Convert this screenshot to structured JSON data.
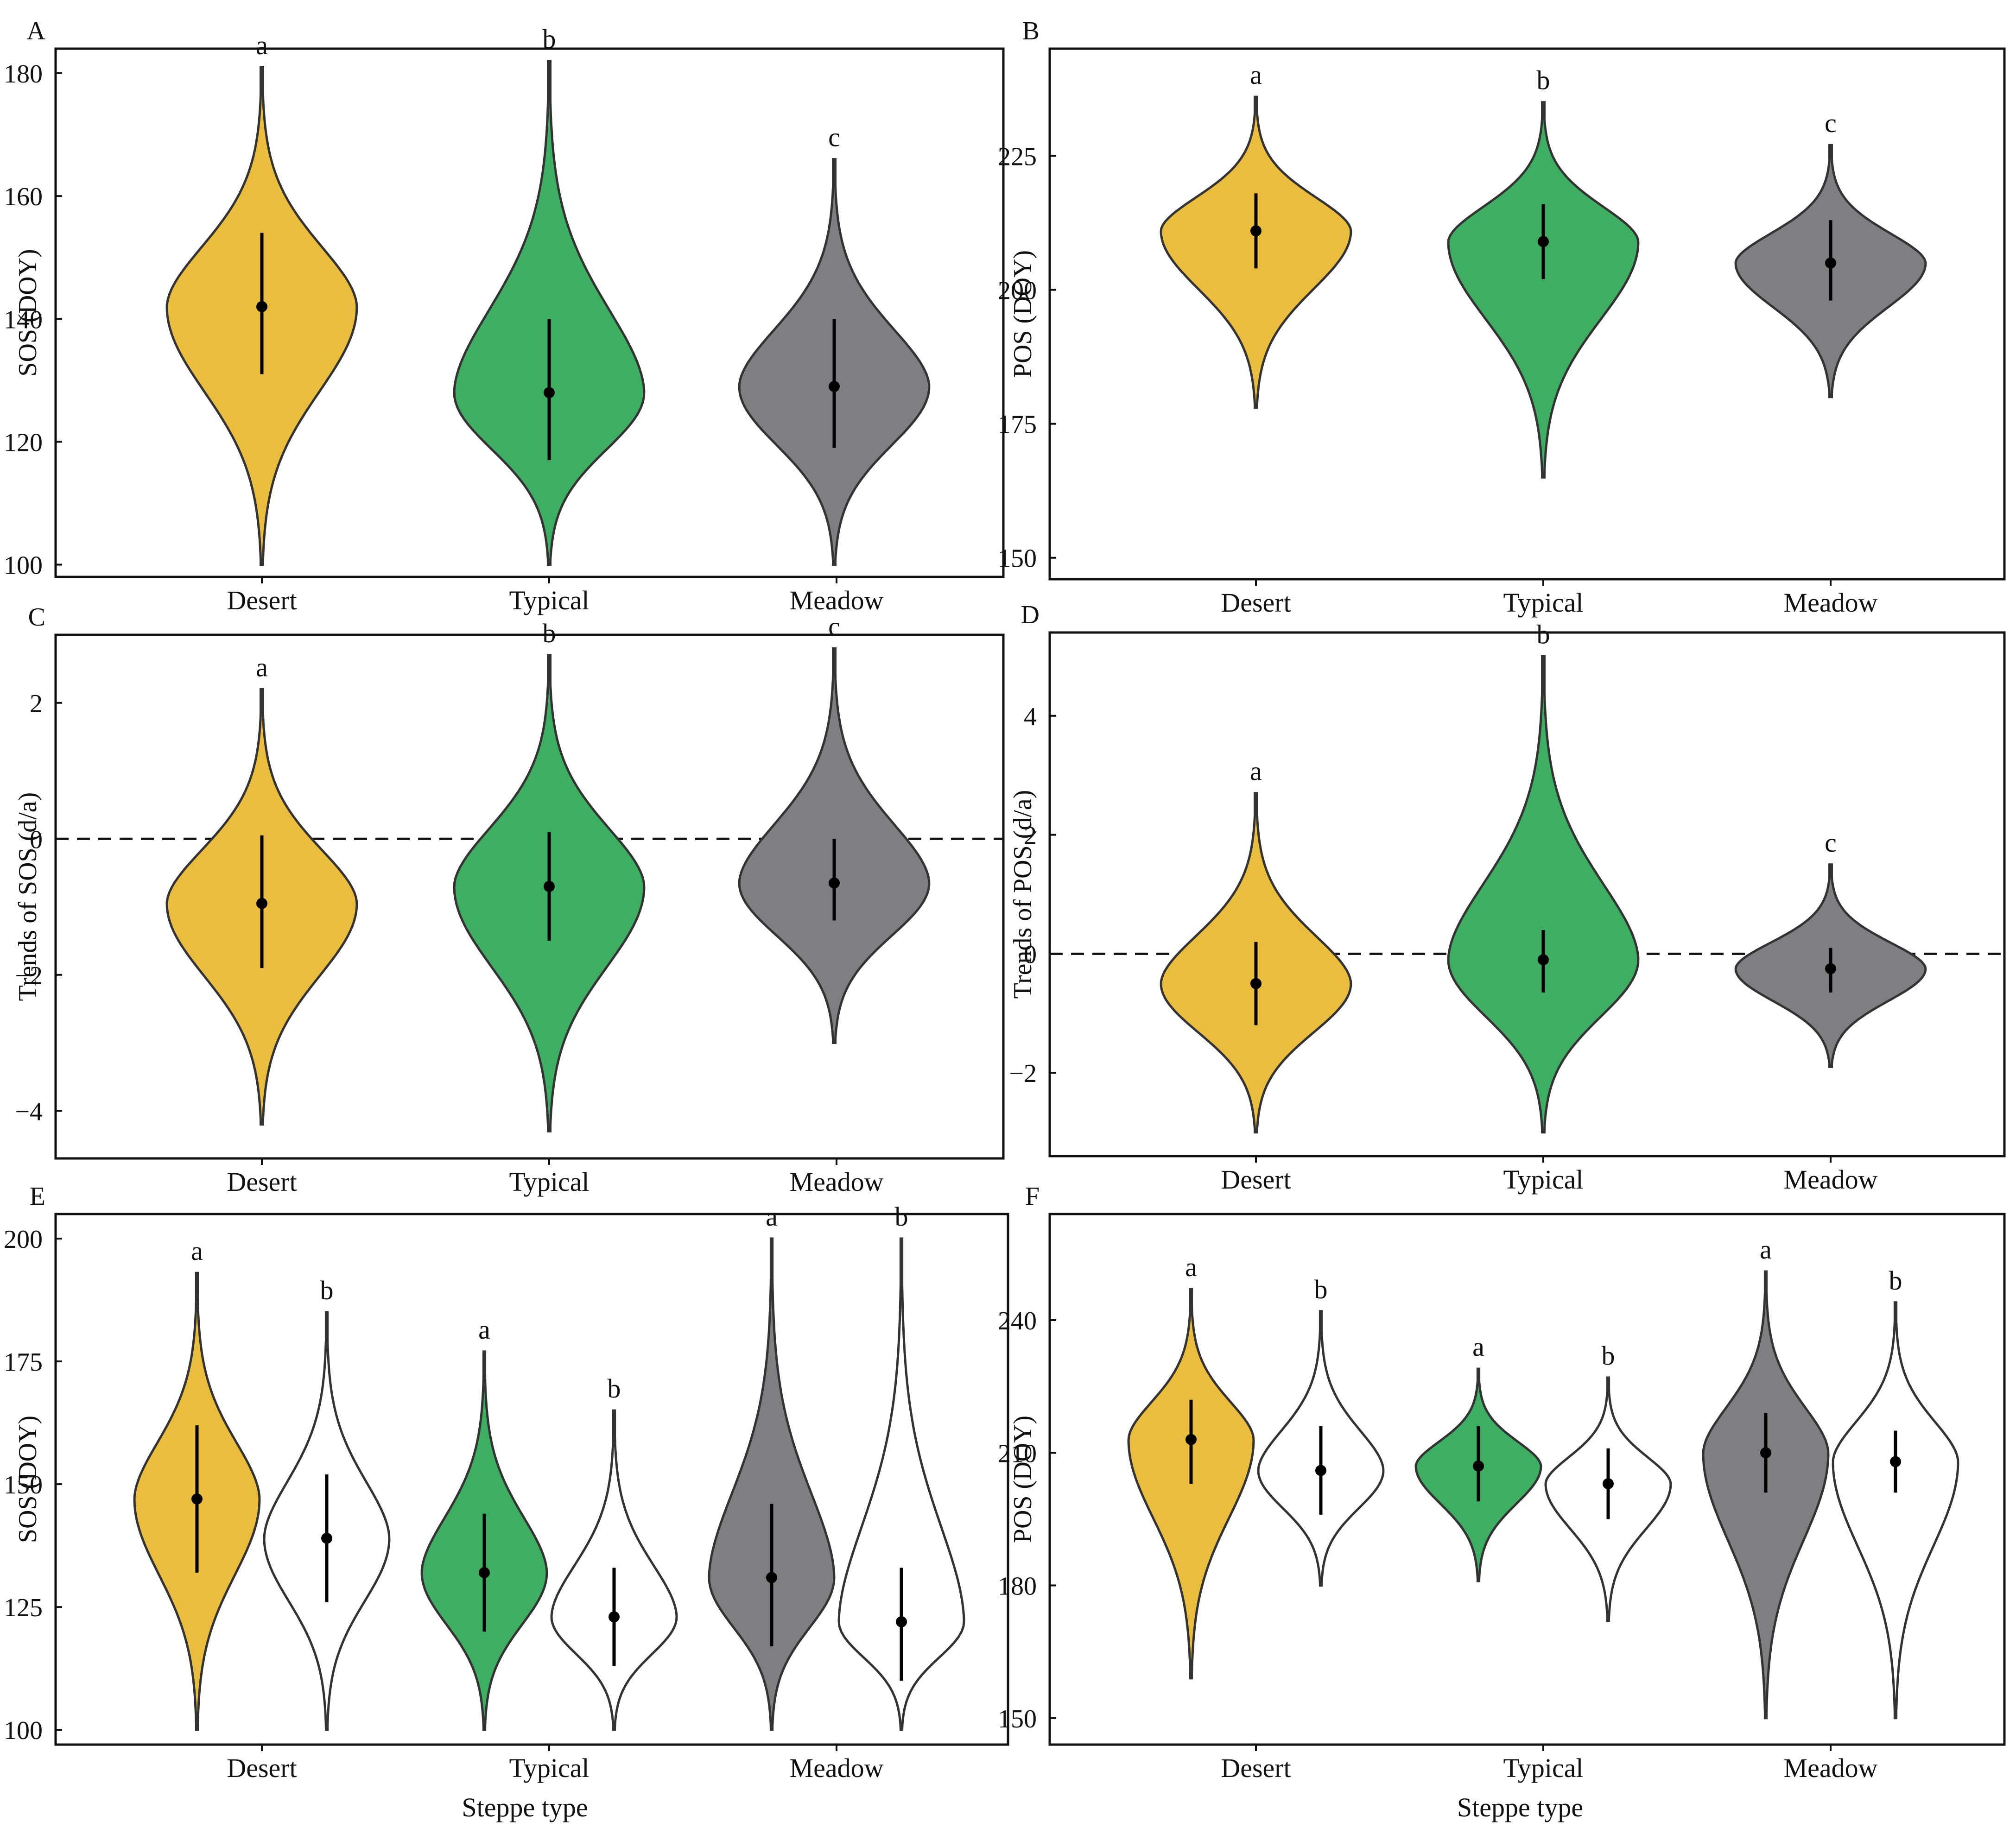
{
  "figure": {
    "x_axis_title": "Steppe type",
    "colors": {
      "Desert": "#EBBD3F",
      "Typical": "#3DAE62",
      "Meadow": "#7E7F82",
      "grazed": "#FFFFFF",
      "outline": "#333333"
    }
  },
  "chart_data": [
    {
      "panel": "A",
      "type": "violin",
      "ylabel": "SOS (DOY)",
      "xlabel": "",
      "categories": [
        "Desert",
        "Typical",
        "Meadow"
      ],
      "ylim": [
        98,
        184
      ],
      "yticks": [
        100,
        120,
        140,
        160,
        180
      ],
      "series": [
        {
          "category": "Desert",
          "fill": "Desert",
          "min": 100,
          "max": 181,
          "q1": 131,
          "q3": 154,
          "median": 142,
          "letter": "a"
        },
        {
          "category": "Typical",
          "fill": "Typical",
          "min": 100,
          "max": 182,
          "q1": 117,
          "q3": 140,
          "median": 128,
          "letter": "b"
        },
        {
          "category": "Meadow",
          "fill": "Meadow",
          "min": 100,
          "max": 166,
          "q1": 119,
          "q3": 140,
          "median": 129,
          "letter": "c"
        }
      ]
    },
    {
      "panel": "B",
      "type": "violin",
      "ylabel": "POS (DOY)",
      "xlabel": "",
      "categories": [
        "Desert",
        "Typical",
        "Meadow"
      ],
      "ylim": [
        146,
        245
      ],
      "yticks": [
        150,
        175,
        200,
        225
      ],
      "series": [
        {
          "category": "Desert",
          "fill": "Desert",
          "min": 178,
          "max": 236,
          "q1": 204,
          "q3": 218,
          "median": 211,
          "letter": "a"
        },
        {
          "category": "Typical",
          "fill": "Typical",
          "min": 165,
          "max": 235,
          "q1": 202,
          "q3": 216,
          "median": 209,
          "letter": "b"
        },
        {
          "category": "Meadow",
          "fill": "Meadow",
          "min": 180,
          "max": 227,
          "q1": 198,
          "q3": 213,
          "median": 205,
          "letter": "c"
        }
      ]
    },
    {
      "panel": "C",
      "type": "violin",
      "ylabel": "Trends of SOS (d/a)",
      "xlabel": "",
      "categories": [
        "Desert",
        "Typical",
        "Meadow"
      ],
      "ylim": [
        -4.7,
        3.0
      ],
      "yticks": [
        -4,
        -2,
        0,
        2
      ],
      "reference_line": 0,
      "series": [
        {
          "category": "Desert",
          "fill": "Desert",
          "min": -4.2,
          "max": 2.2,
          "q1": -1.9,
          "q3": 0.05,
          "median": -0.95,
          "letter": "a"
        },
        {
          "category": "Typical",
          "fill": "Typical",
          "min": -4.3,
          "max": 2.7,
          "q1": -1.5,
          "q3": 0.1,
          "median": -0.7,
          "letter": "b"
        },
        {
          "category": "Meadow",
          "fill": "Meadow",
          "min": -3.0,
          "max": 2.8,
          "q1": -1.2,
          "q3": 0.0,
          "median": -0.65,
          "letter": "c"
        }
      ]
    },
    {
      "panel": "D",
      "type": "violin",
      "ylabel": "Trends of POS (d/a)",
      "xlabel": "",
      "categories": [
        "Desert",
        "Typical",
        "Meadow"
      ],
      "ylim": [
        -3.4,
        5.4
      ],
      "yticks": [
        -2,
        0,
        2,
        4
      ],
      "reference_line": 0,
      "series": [
        {
          "category": "Desert",
          "fill": "Desert",
          "min": -3.0,
          "max": 2.7,
          "q1": -1.2,
          "q3": 0.2,
          "median": -0.5,
          "letter": "a"
        },
        {
          "category": "Typical",
          "fill": "Typical",
          "min": -3.0,
          "max": 5.0,
          "q1": -0.65,
          "q3": 0.4,
          "median": -0.1,
          "letter": "b"
        },
        {
          "category": "Meadow",
          "fill": "Meadow",
          "min": -1.9,
          "max": 1.5,
          "q1": -0.65,
          "q3": 0.1,
          "median": -0.25,
          "letter": "c"
        }
      ]
    },
    {
      "panel": "E",
      "type": "violin",
      "ylabel": "SOS (DOY)",
      "xlabel": "Steppe type",
      "categories": [
        "Desert",
        "Typical",
        "Meadow"
      ],
      "ylim": [
        97,
        205
      ],
      "yticks": [
        100,
        125,
        150,
        175,
        200
      ],
      "series": [
        {
          "category": "Desert",
          "group": 1,
          "fill": "Desert",
          "min": 100,
          "max": 193,
          "q1": 132,
          "q3": 162,
          "median": 147,
          "letter": "a"
        },
        {
          "category": "Desert",
          "group": 2,
          "fill": "grazed",
          "min": 100,
          "max": 185,
          "q1": 126,
          "q3": 152,
          "median": 139,
          "letter": "b"
        },
        {
          "category": "Typical",
          "group": 1,
          "fill": "Typical",
          "min": 100,
          "max": 177,
          "q1": 120,
          "q3": 144,
          "median": 132,
          "letter": "a"
        },
        {
          "category": "Typical",
          "group": 2,
          "fill": "grazed",
          "min": 100,
          "max": 165,
          "q1": 113,
          "q3": 133,
          "median": 123,
          "letter": "b"
        },
        {
          "category": "Meadow",
          "group": 1,
          "fill": "Meadow",
          "min": 100,
          "max": 200,
          "q1": 117,
          "q3": 146,
          "median": 131,
          "letter": "a"
        },
        {
          "category": "Meadow",
          "group": 2,
          "fill": "grazed",
          "min": 100,
          "max": 200,
          "q1": 110,
          "q3": 133,
          "median": 122,
          "letter": "b"
        }
      ]
    },
    {
      "panel": "F",
      "type": "violin",
      "ylabel": "POS (DOY)",
      "xlabel": "Steppe type",
      "categories": [
        "Desert",
        "Typical",
        "Meadow"
      ],
      "ylim": [
        144,
        264
      ],
      "yticks": [
        150,
        180,
        210,
        240
      ],
      "series": [
        {
          "category": "Desert",
          "group": 1,
          "fill": "Desert",
          "min": 159,
          "max": 247,
          "q1": 203,
          "q3": 222,
          "median": 213,
          "letter": "a"
        },
        {
          "category": "Desert",
          "group": 2,
          "fill": "grazed",
          "min": 180,
          "max": 242,
          "q1": 196,
          "q3": 216,
          "median": 206,
          "letter": "b"
        },
        {
          "category": "Typical",
          "group": 1,
          "fill": "Typical",
          "min": 181,
          "max": 229,
          "q1": 199,
          "q3": 216,
          "median": 207,
          "letter": "a"
        },
        {
          "category": "Typical",
          "group": 2,
          "fill": "grazed",
          "min": 172,
          "max": 227,
          "q1": 195,
          "q3": 211,
          "median": 203,
          "letter": "b"
        },
        {
          "category": "Meadow",
          "group": 1,
          "fill": "Meadow",
          "min": 150,
          "max": 251,
          "q1": 201,
          "q3": 219,
          "median": 210,
          "letter": "a"
        },
        {
          "category": "Meadow",
          "group": 2,
          "fill": "grazed",
          "min": 150,
          "max": 244,
          "q1": 201,
          "q3": 215,
          "median": 208,
          "letter": "b"
        }
      ]
    }
  ]
}
